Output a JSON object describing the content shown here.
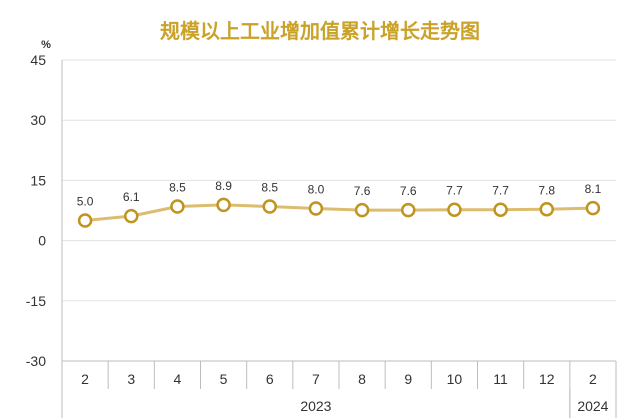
{
  "chart_data": {
    "type": "line",
    "title": "规模以上工业增加值累计增长走势图",
    "y_unit": "%",
    "ylim": [
      -30,
      45
    ],
    "y_ticks": [
      45,
      30,
      15,
      0,
      -15,
      -30
    ],
    "categories": [
      "2",
      "3",
      "4",
      "5",
      "6",
      "7",
      "8",
      "9",
      "10",
      "11",
      "12",
      "2"
    ],
    "years": [
      {
        "label": "2023",
        "start": 0,
        "end": 10
      },
      {
        "label": "2024",
        "start": 11,
        "end": 11
      }
    ],
    "series": [
      {
        "values": [
          5.0,
          6.1,
          8.5,
          8.9,
          8.5,
          8.0,
          7.6,
          7.6,
          7.7,
          7.7,
          7.8,
          8.1
        ],
        "labels": [
          "5.0",
          "6.1",
          "8.5",
          "8.9",
          "8.5",
          "8.0",
          "7.6",
          "7.6",
          "7.7",
          "7.7",
          "7.8",
          "8.1"
        ]
      }
    ],
    "colors": {
      "title": "#c9a227",
      "line": "#dcbc6e",
      "marker_stroke": "#bf9420",
      "marker_fill": "#ffffff",
      "grid": "#e3e3e3",
      "axis": "#bdbdbd"
    },
    "grid": true,
    "legend": "none"
  }
}
